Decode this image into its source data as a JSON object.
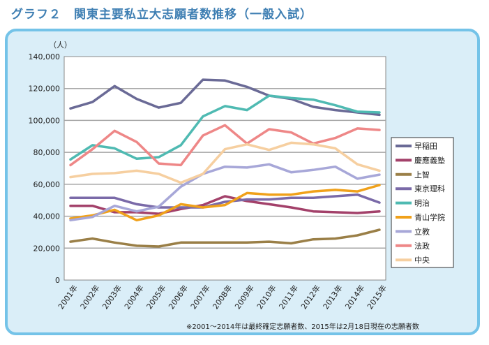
{
  "figure_title": "グラフ２　関東主要私立大志願者数推移（一般入試）",
  "footnote": "※2001～2014年は最終確定志願者数、2015年は2月18日現在の志願者数",
  "chart_data": {
    "type": "line",
    "title": "グラフ２　関東主要私立大志願者数推移（一般入試）",
    "ylabel": "（人）",
    "xlabel": "",
    "ylim": [
      0,
      140000
    ],
    "y_ticks": [
      0,
      20000,
      40000,
      60000,
      80000,
      100000,
      120000,
      140000
    ],
    "y_tick_labels": [
      "0",
      "20,000",
      "40,000",
      "60,000",
      "80,000",
      "100,000",
      "120,000",
      "140,000"
    ],
    "grid": true,
    "legend_position": "right",
    "categories": [
      "2001年",
      "2002年",
      "2003年",
      "2004年",
      "2005年",
      "2006年",
      "2007年",
      "2008年",
      "2009年",
      "2010年",
      "2011年",
      "2012年",
      "2013年",
      "2014年",
      "2015年"
    ],
    "series": [
      {
        "name": "早稲田",
        "color": "#6a6a96",
        "values": [
          107500,
          111500,
          121500,
          113500,
          108000,
          111000,
          125500,
          125000,
          121000,
          115500,
          113500,
          108500,
          106500,
          105000,
          103500
        ]
      },
      {
        "name": "慶應義塾",
        "color": "#a3416a",
        "values": [
          46500,
          46500,
          42500,
          42500,
          41500,
          44500,
          47000,
          52500,
          49500,
          47500,
          45500,
          43000,
          42500,
          42000,
          43000
        ]
      },
      {
        "name": "上智",
        "color": "#9a7f47",
        "values": [
          24000,
          26000,
          23500,
          21500,
          21000,
          23500,
          23500,
          23500,
          23500,
          24000,
          23000,
          25500,
          26000,
          28000,
          31500
        ]
      },
      {
        "name": "東京理科",
        "color": "#7a6aa8",
        "values": [
          51500,
          51500,
          51500,
          47500,
          45500,
          45500,
          45500,
          49000,
          50500,
          50500,
          51500,
          51500,
          52500,
          53500,
          48500
        ]
      },
      {
        "name": "明治",
        "color": "#4fbab2",
        "values": [
          75500,
          84500,
          82500,
          76000,
          77000,
          84500,
          102500,
          109000,
          106500,
          115500,
          114000,
          113000,
          109500,
          105500,
          105000
        ]
      },
      {
        "name": "青山学院",
        "color": "#f0a11a",
        "values": [
          38500,
          40500,
          44000,
          37500,
          40500,
          47500,
          45500,
          47000,
          54500,
          53500,
          53500,
          55500,
          56500,
          55500,
          59500
        ]
      },
      {
        "name": "立教",
        "color": "#a7a7d8",
        "values": [
          37500,
          39500,
          46500,
          43000,
          46000,
          58500,
          66500,
          71000,
          70500,
          72500,
          67500,
          69000,
          71000,
          63500,
          66000
        ]
      },
      {
        "name": "法政",
        "color": "#ee8787",
        "values": [
          72000,
          82000,
          93500,
          86500,
          73000,
          72000,
          90500,
          97000,
          85500,
          94500,
          92500,
          85500,
          89000,
          95000,
          94000
        ]
      },
      {
        "name": "中央",
        "color": "#f6cfa0",
        "values": [
          64500,
          66500,
          67000,
          68500,
          66500,
          61000,
          66500,
          82000,
          85000,
          81500,
          86000,
          85000,
          82500,
          72500,
          68500
        ]
      }
    ]
  }
}
